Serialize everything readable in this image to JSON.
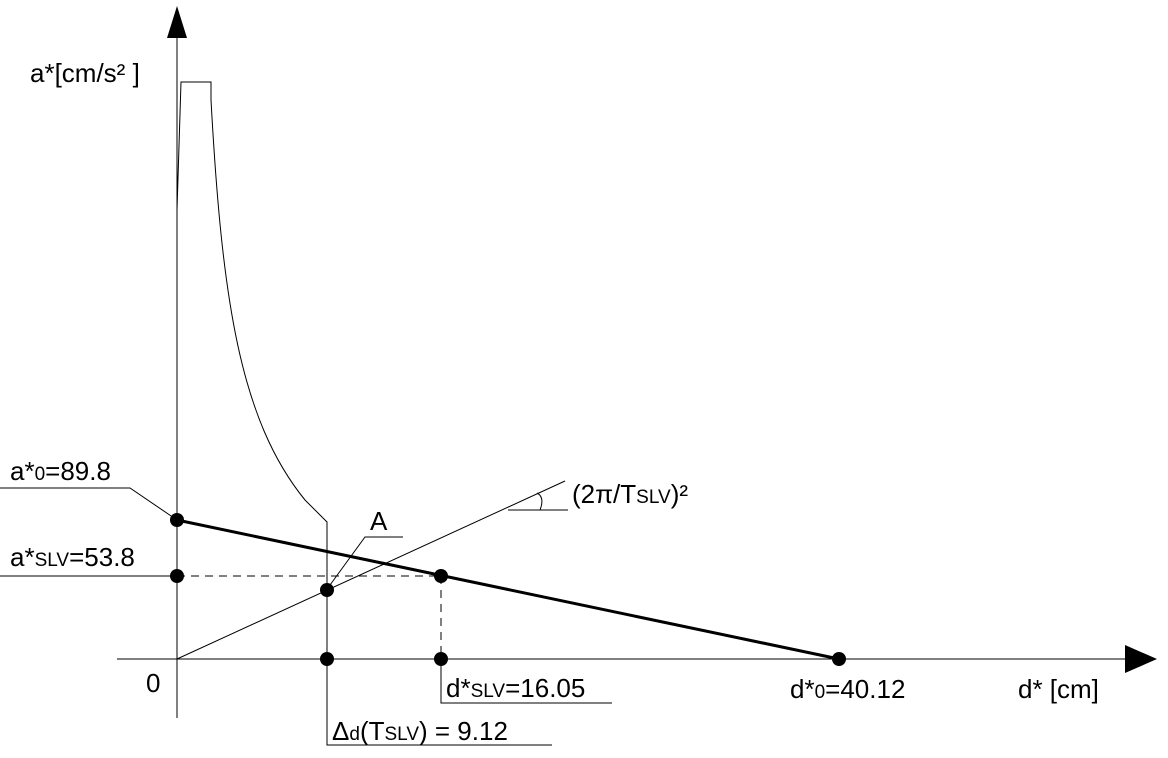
{
  "axes": {
    "y_label": "a*[cm/s² ]",
    "x_label": "d* [cm]",
    "origin": "0"
  },
  "labels": {
    "a0": {
      "main": "a*",
      "sub": "0",
      "rest": "=89.8"
    },
    "a_slv": {
      "main": "a*",
      "sub": "SLV",
      "rest": "=53.8"
    },
    "point_a": "A",
    "slope": {
      "main": "(2π/T",
      "sub": "SLV",
      "rest": ")²"
    },
    "d_slv": {
      "main": "d*",
      "sub": "SLV",
      "rest": "=16.05"
    },
    "d0": {
      "main": "d*",
      "sub": "0",
      "rest": "=40.12"
    },
    "delta_d": {
      "main": "Δ",
      "sub": "d",
      "mid": "(T",
      "sub2": "SLV",
      "rest": ") = 9.12"
    }
  }
}
